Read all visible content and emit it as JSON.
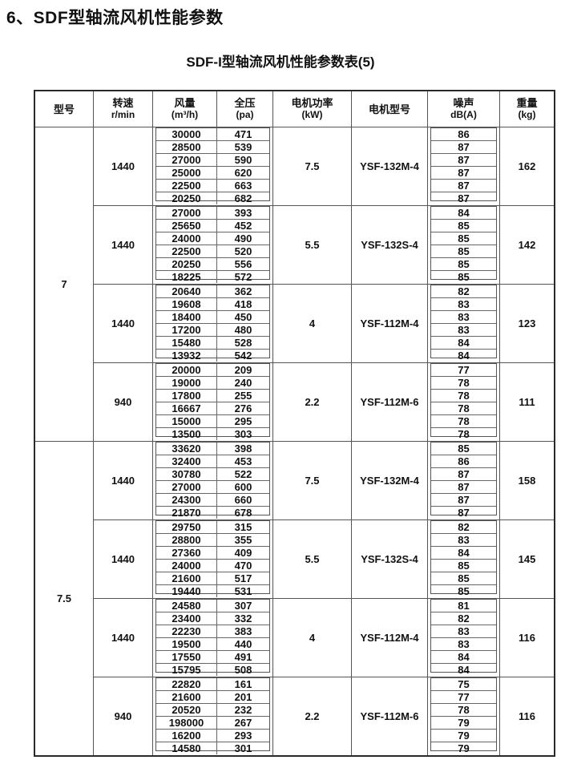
{
  "page": {
    "title": "6、SDF型轴流风机性能参数",
    "subtitle": "SDF-I型轴流风机性能参数表(5)"
  },
  "table": {
    "headers": [
      {
        "label": "型号",
        "unit": ""
      },
      {
        "label": "转速",
        "unit": "r/min"
      },
      {
        "label": "风量",
        "unit": "(m³/h)"
      },
      {
        "label": "全压",
        "unit": "(pa)"
      },
      {
        "label": "电机功率",
        "unit": "(kW)"
      },
      {
        "label": "电机型号",
        "unit": ""
      },
      {
        "label": "噪声",
        "unit": "dB(A)"
      },
      {
        "label": "重量",
        "unit": "(kg)"
      }
    ],
    "groups": [
      {
        "model": "7",
        "blocks": [
          {
            "rpm": "1440",
            "power": "7.5",
            "motor": "YSF-132M-4",
            "weight": "162",
            "rows": [
              {
                "flow": "30000",
                "pressure": "471",
                "noise": "86"
              },
              {
                "flow": "28500",
                "pressure": "539",
                "noise": "87"
              },
              {
                "flow": "27000",
                "pressure": "590",
                "noise": "87"
              },
              {
                "flow": "25000",
                "pressure": "620",
                "noise": "87"
              },
              {
                "flow": "22500",
                "pressure": "663",
                "noise": "87"
              },
              {
                "flow": "20250",
                "pressure": "682",
                "noise": "87"
              }
            ]
          },
          {
            "rpm": "1440",
            "power": "5.5",
            "motor": "YSF-132S-4",
            "weight": "142",
            "rows": [
              {
                "flow": "27000",
                "pressure": "393",
                "noise": "84"
              },
              {
                "flow": "25650",
                "pressure": "452",
                "noise": "85"
              },
              {
                "flow": "24000",
                "pressure": "490",
                "noise": "85"
              },
              {
                "flow": "22500",
                "pressure": "520",
                "noise": "85"
              },
              {
                "flow": "20250",
                "pressure": "556",
                "noise": "85"
              },
              {
                "flow": "18225",
                "pressure": "572",
                "noise": "85"
              }
            ]
          },
          {
            "rpm": "1440",
            "power": "4",
            "motor": "YSF-112M-4",
            "weight": "123",
            "rows": [
              {
                "flow": "20640",
                "pressure": "362",
                "noise": "82"
              },
              {
                "flow": "19608",
                "pressure": "418",
                "noise": "83"
              },
              {
                "flow": "18400",
                "pressure": "450",
                "noise": "83"
              },
              {
                "flow": "17200",
                "pressure": "480",
                "noise": "83"
              },
              {
                "flow": "15480",
                "pressure": "528",
                "noise": "84"
              },
              {
                "flow": "13932",
                "pressure": "542",
                "noise": "84"
              }
            ]
          },
          {
            "rpm": "940",
            "power": "2.2",
            "motor": "YSF-112M-6",
            "weight": "111",
            "rows": [
              {
                "flow": "20000",
                "pressure": "209",
                "noise": "77"
              },
              {
                "flow": "19000",
                "pressure": "240",
                "noise": "78"
              },
              {
                "flow": "17800",
                "pressure": "255",
                "noise": "78"
              },
              {
                "flow": "16667",
                "pressure": "276",
                "noise": "78"
              },
              {
                "flow": "15000",
                "pressure": "295",
                "noise": "78"
              },
              {
                "flow": "13500",
                "pressure": "303",
                "noise": "78"
              }
            ]
          }
        ]
      },
      {
        "model": "7.5",
        "blocks": [
          {
            "rpm": "1440",
            "power": "7.5",
            "motor": "YSF-132M-4",
            "weight": "158",
            "rows": [
              {
                "flow": "33620",
                "pressure": "398",
                "noise": "85"
              },
              {
                "flow": "32400",
                "pressure": "453",
                "noise": "86"
              },
              {
                "flow": "30780",
                "pressure": "522",
                "noise": "87"
              },
              {
                "flow": "27000",
                "pressure": "600",
                "noise": "87"
              },
              {
                "flow": "24300",
                "pressure": "660",
                "noise": "87"
              },
              {
                "flow": "21870",
                "pressure": "678",
                "noise": "87"
              }
            ]
          },
          {
            "rpm": "1440",
            "power": "5.5",
            "motor": "YSF-132S-4",
            "weight": "145",
            "rows": [
              {
                "flow": "29750",
                "pressure": "315",
                "noise": "82"
              },
              {
                "flow": "28800",
                "pressure": "355",
                "noise": "83"
              },
              {
                "flow": "27360",
                "pressure": "409",
                "noise": "84"
              },
              {
                "flow": "24000",
                "pressure": "470",
                "noise": "85"
              },
              {
                "flow": "21600",
                "pressure": "517",
                "noise": "85"
              },
              {
                "flow": "19440",
                "pressure": "531",
                "noise": "85"
              }
            ]
          },
          {
            "rpm": "1440",
            "power": "4",
            "motor": "YSF-112M-4",
            "weight": "116",
            "rows": [
              {
                "flow": "24580",
                "pressure": "307",
                "noise": "81"
              },
              {
                "flow": "23400",
                "pressure": "332",
                "noise": "82"
              },
              {
                "flow": "22230",
                "pressure": "383",
                "noise": "83"
              },
              {
                "flow": "19500",
                "pressure": "440",
                "noise": "83"
              },
              {
                "flow": "17550",
                "pressure": "491",
                "noise": "84"
              },
              {
                "flow": "15795",
                "pressure": "508",
                "noise": "84"
              }
            ]
          },
          {
            "rpm": "940",
            "power": "2.2",
            "motor": "YSF-112M-6",
            "weight": "116",
            "rows": [
              {
                "flow": "22820",
                "pressure": "161",
                "noise": "75"
              },
              {
                "flow": "21600",
                "pressure": "201",
                "noise": "77"
              },
              {
                "flow": "20520",
                "pressure": "232",
                "noise": "78"
              },
              {
                "flow": "198000",
                "pressure": "267",
                "noise": "79"
              },
              {
                "flow": "16200",
                "pressure": "293",
                "noise": "79"
              },
              {
                "flow": "14580",
                "pressure": "301",
                "noise": "79"
              }
            ]
          }
        ]
      }
    ]
  }
}
